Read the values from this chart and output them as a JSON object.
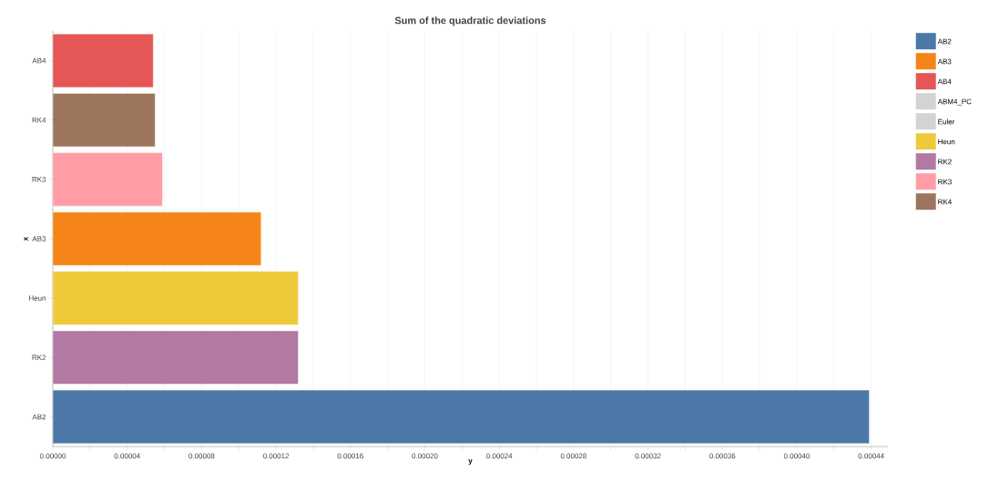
{
  "chart_data": {
    "type": "bar",
    "orientation": "horizontal",
    "title": "Sum of the quadratic deviations",
    "xlabel": "y",
    "ylabel": "x",
    "categories": [
      "AB4",
      "RK4",
      "RK3",
      "AB3",
      "Heun",
      "RK2",
      "AB2"
    ],
    "series": [
      {
        "name": "AB2",
        "color": "#4c78a8",
        "values": [
          null,
          null,
          null,
          null,
          null,
          null,
          0.000439
        ]
      },
      {
        "name": "AB3",
        "color": "#f58518",
        "values": [
          null,
          null,
          null,
          0.000112,
          null,
          null,
          null
        ]
      },
      {
        "name": "AB4",
        "color": "#e45756",
        "values": [
          5.4e-05,
          null,
          null,
          null,
          null,
          null,
          null
        ]
      },
      {
        "name": "ABM4_PC",
        "color": "#d3d3d3",
        "values": [
          null,
          null,
          null,
          null,
          null,
          null,
          null
        ]
      },
      {
        "name": "Euler",
        "color": "#d3d3d3",
        "values": [
          null,
          null,
          null,
          null,
          null,
          null,
          null
        ]
      },
      {
        "name": "Heun",
        "color": "#eeca3b",
        "values": [
          null,
          null,
          null,
          null,
          0.000132,
          null,
          null
        ]
      },
      {
        "name": "RK2",
        "color": "#b279a2",
        "values": [
          null,
          null,
          null,
          null,
          null,
          0.000132,
          null
        ]
      },
      {
        "name": "RK3",
        "color": "#ff9da6",
        "values": [
          null,
          null,
          5.9e-05,
          null,
          null,
          null,
          null
        ]
      },
      {
        "name": "RK4",
        "color": "#9d755d",
        "values": [
          null,
          5.5e-05,
          null,
          null,
          null,
          null,
          null
        ]
      }
    ],
    "xlim": [
      0,
      0.000449
    ],
    "xticks": [
      {
        "value": 0,
        "label": "0.00000"
      },
      {
        "value": 2e-05,
        "label": null
      },
      {
        "value": 4e-05,
        "label": "0.00004"
      },
      {
        "value": 6e-05,
        "label": null
      },
      {
        "value": 8e-05,
        "label": "0.00008"
      },
      {
        "value": 0.0001,
        "label": null
      },
      {
        "value": 0.00012,
        "label": "0.00012"
      },
      {
        "value": 0.00014,
        "label": null
      },
      {
        "value": 0.00016,
        "label": "0.00016"
      },
      {
        "value": 0.00018,
        "label": null
      },
      {
        "value": 0.0002,
        "label": "0.00020"
      },
      {
        "value": 0.00022,
        "label": null
      },
      {
        "value": 0.00024,
        "label": "0.00024"
      },
      {
        "value": 0.00026,
        "label": null
      },
      {
        "value": 0.00028,
        "label": "0.00028"
      },
      {
        "value": 0.0003,
        "label": null
      },
      {
        "value": 0.00032,
        "label": "0.00032"
      },
      {
        "value": 0.00034,
        "label": null
      },
      {
        "value": 0.00036,
        "label": "0.00036"
      },
      {
        "value": 0.00038,
        "label": null
      },
      {
        "value": 0.0004,
        "label": "0.00040"
      },
      {
        "value": 0.00042,
        "label": null
      },
      {
        "value": 0.00044,
        "label": "0.00044"
      }
    ],
    "grid": "x",
    "legend": "right"
  }
}
